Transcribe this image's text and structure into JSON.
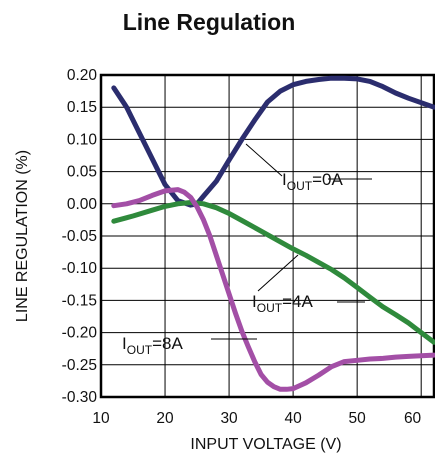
{
  "chart_data": {
    "type": "line",
    "title": "Line Regulation",
    "xlabel": "INPUT VOLTAGE (V)",
    "ylabel": "LINE REGULATION (%)",
    "xlim": [
      10,
      62
    ],
    "ylim": [
      -0.3,
      0.2
    ],
    "x_ticks": [
      "10",
      "20",
      "30",
      "40",
      "50",
      "60"
    ],
    "y_ticks": [
      "0.20",
      "0.15",
      "0.10",
      "0.05",
      "0.00",
      "-0.05",
      "-0.10",
      "-0.15",
      "-0.20",
      "-0.25",
      "-0.30"
    ],
    "grid": true,
    "series": [
      {
        "name": "IOUT=0A",
        "label_main": "I",
        "label_sub": "OUT",
        "label_rest": "=0A",
        "color": "#2b2d6e",
        "x": [
          12,
          14,
          16,
          18,
          20,
          22,
          24,
          25,
          26,
          28,
          30,
          32,
          34,
          36,
          38,
          40,
          42,
          44,
          46,
          48,
          50,
          52,
          54,
          56,
          58,
          60,
          62
        ],
        "y": [
          0.18,
          0.15,
          0.11,
          0.07,
          0.03,
          0.005,
          -0.002,
          0.0,
          0.012,
          0.035,
          0.068,
          0.1,
          0.13,
          0.158,
          0.175,
          0.185,
          0.19,
          0.193,
          0.195,
          0.195,
          0.194,
          0.19,
          0.182,
          0.172,
          0.164,
          0.157,
          0.15
        ]
      },
      {
        "name": "IOUT=4A",
        "label_main": "I",
        "label_sub": "OUT",
        "label_rest": "=4A",
        "color": "#2f8a3c",
        "x": [
          12,
          15,
          18,
          20,
          22,
          24,
          26,
          28,
          30,
          32,
          34,
          36,
          38,
          40,
          42,
          44,
          46,
          48,
          50,
          52,
          54,
          56,
          58,
          60,
          62
        ],
        "y": [
          -0.027,
          -0.019,
          -0.01,
          -0.004,
          0.0,
          0.002,
          0.0,
          -0.006,
          -0.015,
          -0.026,
          -0.037,
          -0.048,
          -0.059,
          -0.07,
          -0.08,
          -0.091,
          -0.102,
          -0.115,
          -0.13,
          -0.145,
          -0.16,
          -0.172,
          -0.185,
          -0.2,
          -0.215
        ]
      },
      {
        "name": "IOUT=8A",
        "label_main": "I",
        "label_sub": "OUT",
        "label_rest": "=8A",
        "color": "#a34fa6",
        "x": [
          12,
          14,
          16,
          18,
          20,
          22,
          23,
          24,
          25,
          26,
          27,
          28,
          29,
          30,
          31,
          32,
          33,
          34,
          35,
          36,
          37,
          38,
          39,
          40,
          42,
          44,
          46,
          48,
          50,
          52,
          54,
          56,
          58,
          60,
          62
        ],
        "y": [
          -0.003,
          0.0,
          0.005,
          0.013,
          0.02,
          0.022,
          0.018,
          0.01,
          -0.005,
          -0.025,
          -0.05,
          -0.08,
          -0.11,
          -0.14,
          -0.17,
          -0.198,
          -0.222,
          -0.245,
          -0.265,
          -0.277,
          -0.284,
          -0.288,
          -0.288,
          -0.287,
          -0.278,
          -0.266,
          -0.253,
          -0.245,
          -0.243,
          -0.241,
          -0.24,
          -0.238,
          -0.237,
          -0.236,
          -0.235
        ]
      }
    ]
  }
}
